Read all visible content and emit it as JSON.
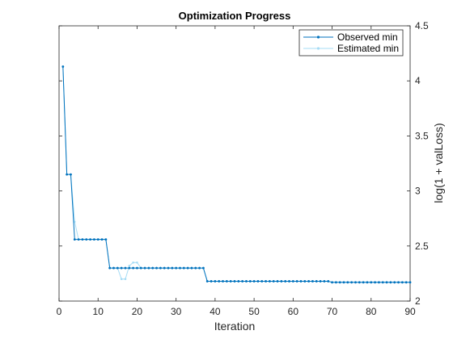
{
  "chart_data": {
    "type": "line",
    "title": "Optimization Progress",
    "xlabel": "Iteration",
    "ylabel": "log(1 + valLoss)",
    "xlim": [
      0,
      90
    ],
    "ylim": [
      2,
      4.5
    ],
    "xticks": [
      0,
      10,
      20,
      30,
      40,
      50,
      60,
      70,
      80,
      90
    ],
    "yticks": [
      2,
      2.5,
      3,
      3.5,
      4,
      4.5
    ],
    "ytick_labels": [
      "2",
      "2.5",
      "3",
      "3.5",
      "4",
      "4.5"
    ],
    "y_axis_side": "right",
    "grid": false,
    "legend_position": "top-right",
    "series": [
      {
        "name": "Observed min",
        "color": "#0072bd",
        "marker": "dot",
        "x": [
          1,
          2,
          3,
          4,
          5,
          6,
          7,
          8,
          9,
          10,
          11,
          12,
          13,
          14,
          15,
          16,
          17,
          18,
          19,
          20,
          21,
          22,
          23,
          24,
          25,
          26,
          27,
          28,
          29,
          30,
          31,
          32,
          33,
          34,
          35,
          36,
          37,
          38,
          39,
          40,
          41,
          42,
          43,
          44,
          45,
          46,
          47,
          48,
          49,
          50,
          51,
          52,
          53,
          54,
          55,
          56,
          57,
          58,
          59,
          60,
          61,
          62,
          63,
          64,
          65,
          66,
          67,
          68,
          69,
          70,
          71,
          72,
          73,
          74,
          75,
          76,
          77,
          78,
          79,
          80,
          81,
          82,
          83,
          84,
          85,
          86,
          87,
          88,
          89,
          90
        ],
        "y": [
          4.13,
          3.15,
          3.15,
          2.56,
          2.56,
          2.56,
          2.56,
          2.56,
          2.56,
          2.56,
          2.56,
          2.56,
          2.3,
          2.3,
          2.3,
          2.3,
          2.3,
          2.3,
          2.3,
          2.3,
          2.3,
          2.3,
          2.3,
          2.3,
          2.3,
          2.3,
          2.3,
          2.3,
          2.3,
          2.3,
          2.3,
          2.3,
          2.3,
          2.3,
          2.3,
          2.3,
          2.3,
          2.18,
          2.18,
          2.18,
          2.18,
          2.18,
          2.18,
          2.18,
          2.18,
          2.18,
          2.18,
          2.18,
          2.18,
          2.18,
          2.18,
          2.18,
          2.18,
          2.18,
          2.18,
          2.18,
          2.18,
          2.18,
          2.18,
          2.18,
          2.18,
          2.18,
          2.18,
          2.18,
          2.18,
          2.18,
          2.18,
          2.18,
          2.18,
          2.17,
          2.17,
          2.17,
          2.17,
          2.17,
          2.17,
          2.17,
          2.17,
          2.17,
          2.17,
          2.17,
          2.17,
          2.17,
          2.17,
          2.17,
          2.17,
          2.17,
          2.17,
          2.17,
          2.17,
          2.17
        ]
      },
      {
        "name": "Estimated min",
        "color": "#a6dcf5",
        "marker": "dot",
        "x": [
          1,
          2,
          3,
          4,
          5,
          6,
          7,
          8,
          9,
          10,
          11,
          12,
          13,
          14,
          15,
          16,
          17,
          18,
          19,
          20,
          21,
          22,
          23,
          24,
          25,
          26,
          27,
          28,
          29,
          30,
          31,
          32,
          33,
          34,
          35,
          36,
          37,
          38,
          39,
          40,
          41,
          42,
          43,
          44,
          45,
          46,
          47,
          48,
          49,
          50,
          51,
          52,
          53,
          54,
          55,
          56,
          57,
          58,
          59,
          60,
          61,
          62,
          63,
          64,
          65,
          66,
          67,
          68,
          69,
          70,
          71,
          72,
          73,
          74,
          75,
          76,
          77,
          78,
          79,
          80,
          81,
          82,
          83,
          84,
          85,
          86,
          87,
          88,
          89,
          90
        ],
        "y": [
          4.13,
          3.15,
          3.15,
          2.72,
          2.56,
          2.56,
          2.56,
          2.56,
          2.56,
          2.56,
          2.56,
          2.56,
          2.3,
          2.3,
          2.3,
          2.2,
          2.2,
          2.32,
          2.35,
          2.35,
          2.3,
          2.3,
          2.3,
          2.3,
          2.3,
          2.3,
          2.3,
          2.3,
          2.3,
          2.3,
          2.3,
          2.3,
          2.3,
          2.3,
          2.3,
          2.3,
          2.3,
          2.18,
          2.18,
          2.18,
          2.18,
          2.18,
          2.18,
          2.18,
          2.18,
          2.18,
          2.18,
          2.18,
          2.18,
          2.18,
          2.18,
          2.18,
          2.18,
          2.18,
          2.18,
          2.18,
          2.18,
          2.18,
          2.18,
          2.18,
          2.18,
          2.18,
          2.18,
          2.18,
          2.18,
          2.18,
          2.18,
          2.18,
          2.18,
          2.17,
          2.17,
          2.17,
          2.17,
          2.17,
          2.17,
          2.17,
          2.17,
          2.17,
          2.17,
          2.17,
          2.17,
          2.17,
          2.17,
          2.17,
          2.17,
          2.17,
          2.17,
          2.17,
          2.17,
          2.17
        ]
      }
    ]
  }
}
